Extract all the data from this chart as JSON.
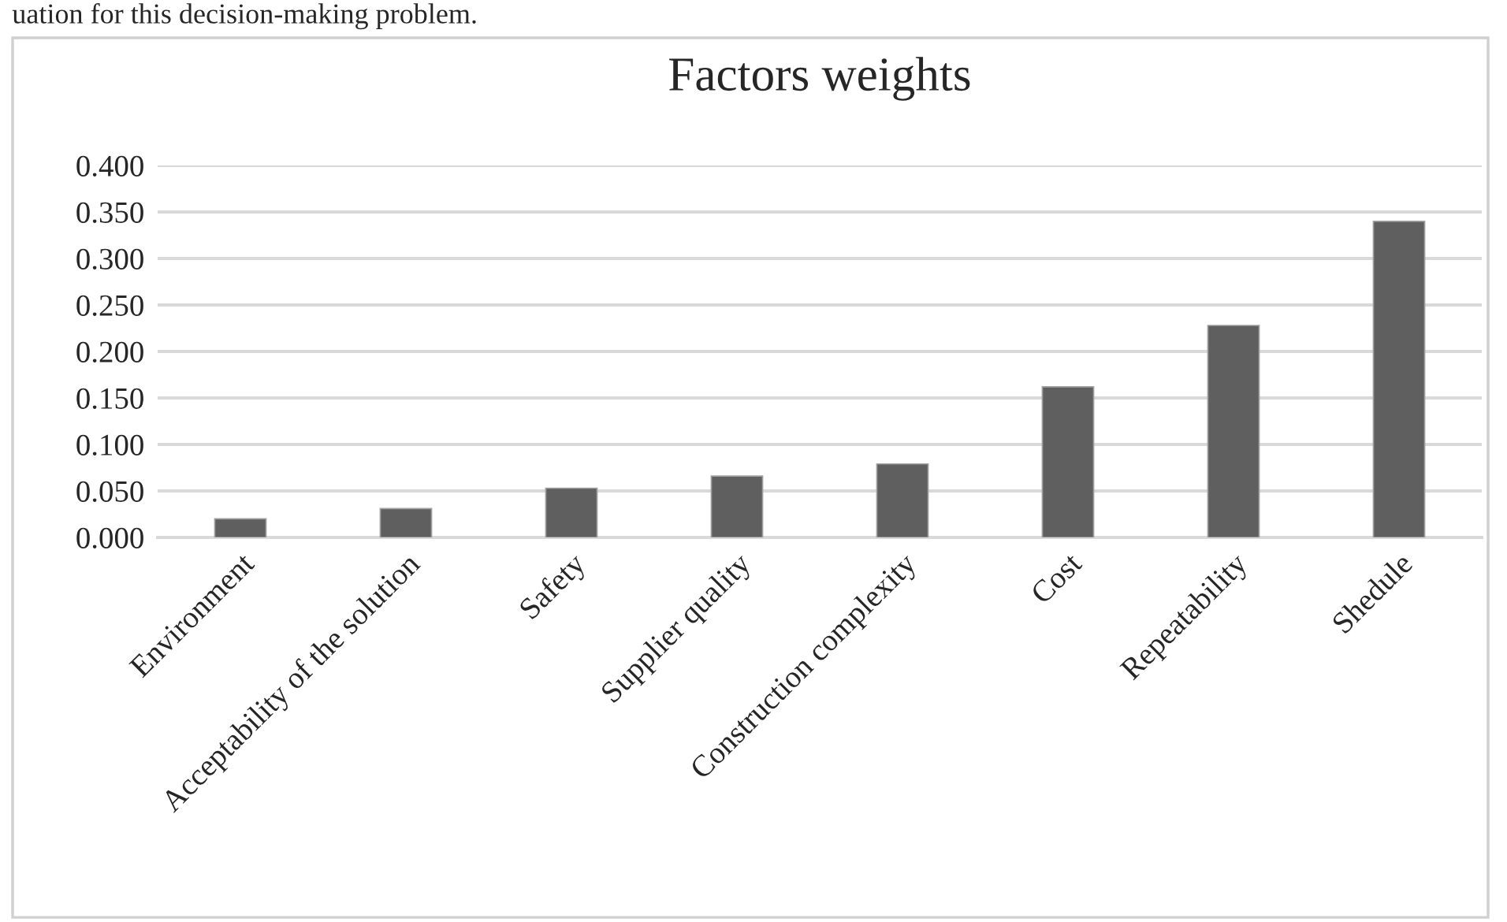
{
  "chart_data": {
    "type": "bar",
    "title": "Factors weights",
    "annotations": [
      "uation for this decision-making problem."
    ],
    "categories": [
      "Environment",
      "Acceptability of the solution",
      "Safety",
      "Supplier quality",
      "Construction complexity",
      "Cost",
      "Repeatability",
      "Shedule"
    ],
    "values": [
      0.02,
      0.031,
      0.053,
      0.066,
      0.079,
      0.162,
      0.228,
      0.34
    ],
    "color": "#5f5f5f",
    "ylim": [
      0,
      0.4
    ],
    "yticks": [
      {
        "value": 0,
        "label": "0.000"
      },
      {
        "value": 0.05,
        "label": "0.050"
      },
      {
        "value": 0.1,
        "label": "0.100"
      },
      {
        "value": 0.15,
        "label": "0.150"
      },
      {
        "value": 0.2,
        "label": "0.200"
      },
      {
        "value": 0.25,
        "label": "0.250"
      },
      {
        "value": 0.3,
        "label": "0.300"
      },
      {
        "value": 0.35,
        "label": "0.350"
      },
      {
        "value": 0.4,
        "label": "0.400"
      }
    ],
    "grid": "y",
    "legend": false
  }
}
